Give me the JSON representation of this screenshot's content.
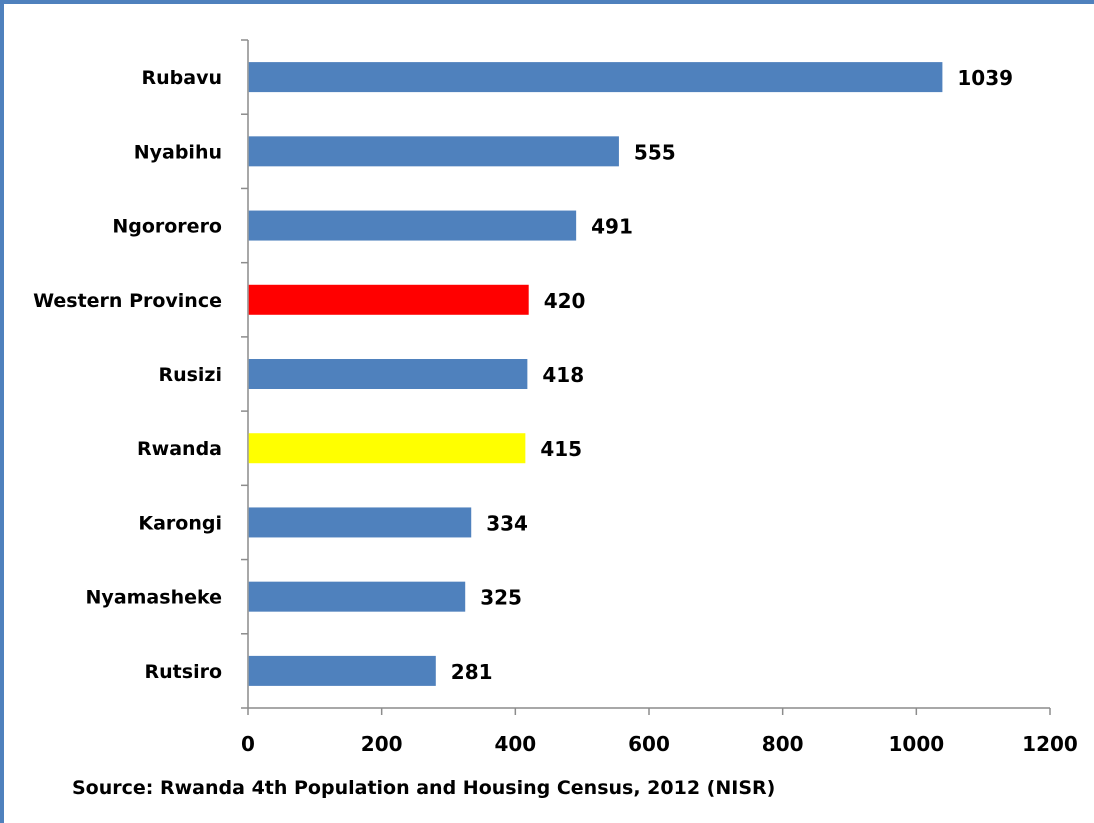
{
  "chart_data": {
    "type": "bar",
    "orientation": "horizontal",
    "categories": [
      "Rubavu",
      "Nyabihu",
      "Ngororero",
      "Western Province",
      "Rusizi",
      "Rwanda",
      "Karongi",
      "Nyamasheke",
      "Rutsiro"
    ],
    "values": [
      1039,
      555,
      491,
      420,
      418,
      415,
      334,
      325,
      281
    ],
    "bar_colors": [
      "#4f81bd",
      "#4f81bd",
      "#4f81bd",
      "#ff0000",
      "#4f81bd",
      "#ffff00",
      "#4f81bd",
      "#4f81bd",
      "#4f81bd"
    ],
    "data_labels": [
      "1039",
      "555",
      "491",
      "420",
      "418",
      "415",
      "334",
      "325",
      "281"
    ],
    "xlim": [
      0,
      1200
    ],
    "xticks": [
      0,
      200,
      400,
      600,
      800,
      1000,
      1200
    ],
    "xtick_labels": [
      "0",
      "200",
      "400",
      "600",
      "800",
      "1000",
      "1200"
    ],
    "grid": false,
    "legend": "none",
    "title": "",
    "xlabel": "",
    "ylabel": ""
  },
  "source_text": "Source: Rwanda 4th Population and Housing Census, 2012 (NISR)"
}
